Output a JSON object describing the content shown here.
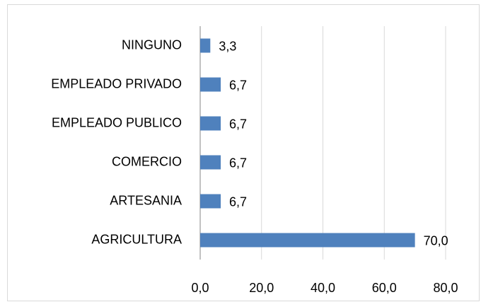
{
  "chart_data": {
    "type": "bar",
    "orientation": "horizontal",
    "categories": [
      "NINGUNO",
      "EMPLEADO PRIVADO",
      "EMPLEADO PUBLICO",
      "COMERCIO",
      "ARTESANIA",
      "AGRICULTURA"
    ],
    "values": [
      3.3,
      6.7,
      6.7,
      6.7,
      6.7,
      70.0
    ],
    "value_labels": [
      "3,3",
      "6,7",
      "6,7",
      "6,7",
      "6,7",
      "70,0"
    ],
    "color": "#4f81bd",
    "xlim": [
      0,
      80
    ],
    "xticks": [
      {
        "value": 0,
        "label": "0,0"
      },
      {
        "value": 20,
        "label": "20,0"
      },
      {
        "value": 40,
        "label": "40,0"
      },
      {
        "value": 60,
        "label": "60,0"
      },
      {
        "value": 80,
        "label": "80,0"
      }
    ],
    "grid": true
  }
}
